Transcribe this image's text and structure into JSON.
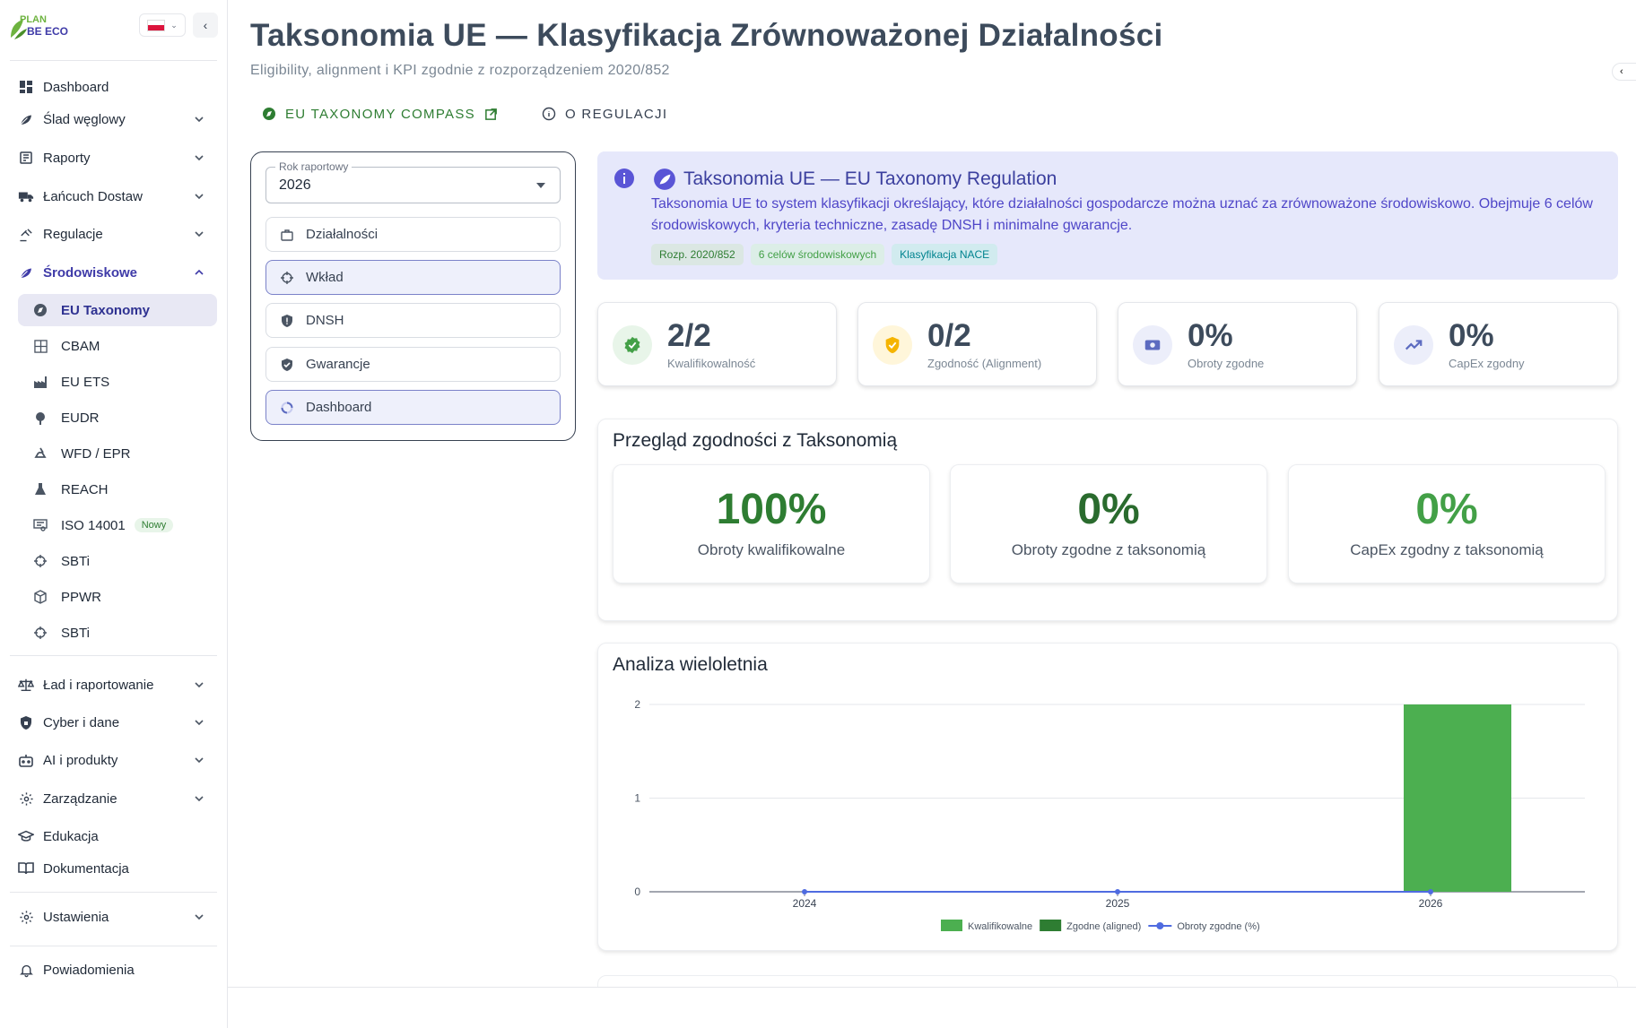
{
  "brand": {
    "logo_top": "PLAN",
    "logo_bottom": "BE ECO",
    "green": "#6db33f",
    "indigo": "#3f3ba8"
  },
  "sidebar": {
    "items": [
      {
        "label": "Dashboard",
        "icon": "dashboard-icon",
        "has_chevron": false
      },
      {
        "label": "Ślad węglowy",
        "icon": "leaf-icon",
        "has_chevron": true
      },
      {
        "label": "Raporty",
        "icon": "report-icon",
        "has_chevron": true
      },
      {
        "label": "Łańcuch Dostaw",
        "icon": "truck-icon",
        "has_chevron": true
      },
      {
        "label": "Regulacje",
        "icon": "gavel-icon",
        "has_chevron": true
      },
      {
        "label": "Środowiskowe",
        "icon": "leaf-icon",
        "has_chevron": true,
        "expanded": true
      }
    ],
    "sub_items": [
      {
        "label": "EU Taxonomy",
        "icon": "compass-icon",
        "active": true
      },
      {
        "label": "CBAM",
        "icon": "grid-icon"
      },
      {
        "label": "EU ETS",
        "icon": "factory-icon"
      },
      {
        "label": "EUDR",
        "icon": "tree-icon"
      },
      {
        "label": "WFD / EPR",
        "icon": "recycle-icon"
      },
      {
        "label": "REACH",
        "icon": "flask-icon"
      },
      {
        "label": "ISO 14001",
        "icon": "certificate-icon",
        "badge": "Nowy"
      },
      {
        "label": "SBTi",
        "icon": "target-icon"
      },
      {
        "label": "PPWR",
        "icon": "package-icon"
      },
      {
        "label": "SBTi",
        "icon": "target-icon"
      }
    ],
    "lower_items": [
      {
        "label": "Ład i raportowanie",
        "icon": "scale-icon",
        "has_chevron": true
      },
      {
        "label": "Cyber i dane",
        "icon": "shield-lock-icon",
        "has_chevron": true
      },
      {
        "label": "AI i produkty",
        "icon": "robot-icon",
        "has_chevron": true
      },
      {
        "label": "Zarządzanie",
        "icon": "gear-icon",
        "has_chevron": true
      },
      {
        "label": "Edukacja",
        "icon": "graduation-cap-icon",
        "has_chevron": false
      },
      {
        "label": "Dokumentacja",
        "icon": "book-icon",
        "has_chevron": false
      }
    ],
    "settings": {
      "label": "Ustawienia",
      "icon": "gear-icon"
    },
    "notifications": {
      "label": "Powiadomienia",
      "icon": "bell-icon"
    }
  },
  "header": {
    "title": "Taksonomia UE — Klasyfikacja Zrównoważonej Działalności",
    "subtitle": "Eligibility, alignment i KPI zgodnie z rozporządzeniem 2020/852",
    "link_compass": "EU TAXONOMY COMPASS",
    "link_about": "O REGULACJI"
  },
  "steps_panel": {
    "year_label": "Rok raportowy",
    "year_value": "2026",
    "steps": [
      {
        "label": "Działalności",
        "icon": "briefcase-icon"
      },
      {
        "label": "Wkład",
        "icon": "crosshair-icon"
      },
      {
        "label": "DNSH",
        "icon": "shield-icon"
      },
      {
        "label": "Gwarancje",
        "icon": "shield-check-icon"
      },
      {
        "label": "Dashboard",
        "icon": "donut-icon"
      }
    ]
  },
  "info": {
    "title": "Taksonomia UE — EU Taxonomy Regulation",
    "text": "Taksonomia UE to system klasyfikacji określający, które działalności gospodarcze można uznać za zrównoważone środowiskowo. Obejmuje 6 celów środowiskowych, kryteria techniczne, zasadę DNSH i minimalne gwarancje.",
    "chips": [
      "Rozp. 2020/852",
      "6 celów środowiskowych",
      "Klasyfikacja NACE"
    ]
  },
  "kpis": [
    {
      "value": "2/2",
      "label": "Kwalifikowalność",
      "icon": "check-badge-icon",
      "color": "#43a047",
      "bg": "#e8f5e9"
    },
    {
      "value": "0/2",
      "label": "Zgodność (Alignment)",
      "icon": "shield-check-icon",
      "color": "#f5b400",
      "bg": "#fff6da"
    },
    {
      "value": "0%",
      "label": "Obroty zgodne",
      "icon": "money-icon",
      "color": "#5c6bc0",
      "bg": "#eceefa"
    },
    {
      "value": "0%",
      "label": "CapEx zgodny",
      "icon": "trending-up-icon",
      "color": "#5c6bc0",
      "bg": "#eceefa"
    }
  ],
  "overview": {
    "title": "Przegląd zgodności z Taksonomią",
    "stats": [
      {
        "value": "100%",
        "label": "Obroty kwalifikowalne"
      },
      {
        "value": "0%",
        "label": "Obroty zgodne z taksonomią"
      },
      {
        "value": "0%",
        "label": "CapEx zgodny z taksonomią"
      }
    ]
  },
  "analysis": {
    "title": "Analiza wieloletnia"
  },
  "chart_data": {
    "type": "bar",
    "categories": [
      "2024",
      "2025",
      "2026"
    ],
    "series": [
      {
        "name": "Kwalifikowalne",
        "type": "bar",
        "color": "#4caf50",
        "values": [
          0,
          0,
          2
        ]
      },
      {
        "name": "Zgodne (aligned)",
        "type": "bar",
        "color": "#2e7d32",
        "values": [
          0,
          0,
          0
        ]
      },
      {
        "name": "Obroty zgodne (%)",
        "type": "line",
        "color": "#4f6be0",
        "values": [
          0,
          0,
          0
        ]
      }
    ],
    "yticks": [
      "0",
      "1",
      "2"
    ],
    "ylim": [
      0,
      2
    ],
    "grid": true,
    "legend": "bottom"
  }
}
